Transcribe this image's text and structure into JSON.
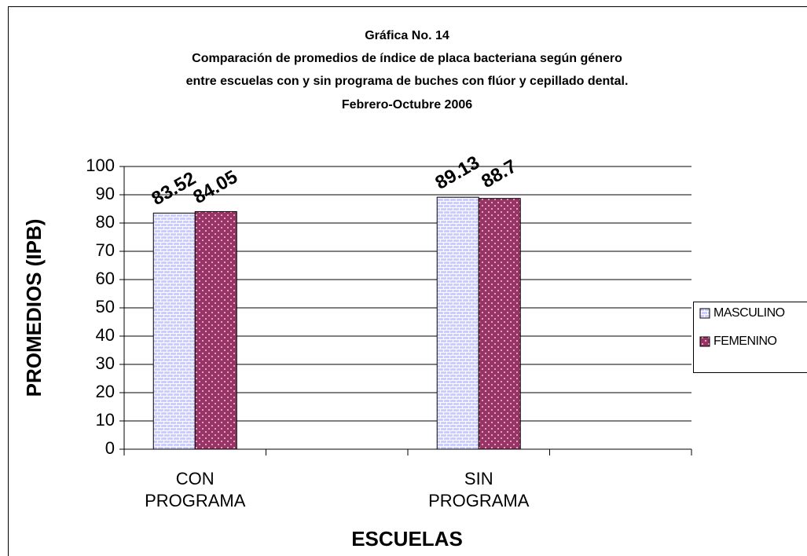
{
  "chart_data": {
    "type": "bar",
    "title": "Gráfica No. 14",
    "subtitle": [
      "Comparación de promedios de índice de placa bacteriana según género",
      "entre escuelas con y sin programa de buches con flúor y cepillado dental.",
      "Febrero-Octubre 2006"
    ],
    "x_label": "ESCUELAS",
    "y_label": "PROMEDIOS (IPB)",
    "categories": [
      "CON PROGRAMA",
      null,
      "SIN PROGRAMA",
      null
    ],
    "series": [
      {
        "name": "MASCULINO",
        "color": "#ccccff",
        "values": [
          83.52,
          null,
          89.13,
          null
        ]
      },
      {
        "name": "FEMENINO",
        "color": "#993366",
        "values": [
          84.05,
          null,
          88.7,
          null
        ]
      }
    ],
    "ylim": [
      0,
      100
    ],
    "yticks": [
      0,
      10,
      20,
      30,
      40,
      50,
      60,
      70,
      80,
      90,
      100
    ],
    "grid": true,
    "legend": "right"
  }
}
